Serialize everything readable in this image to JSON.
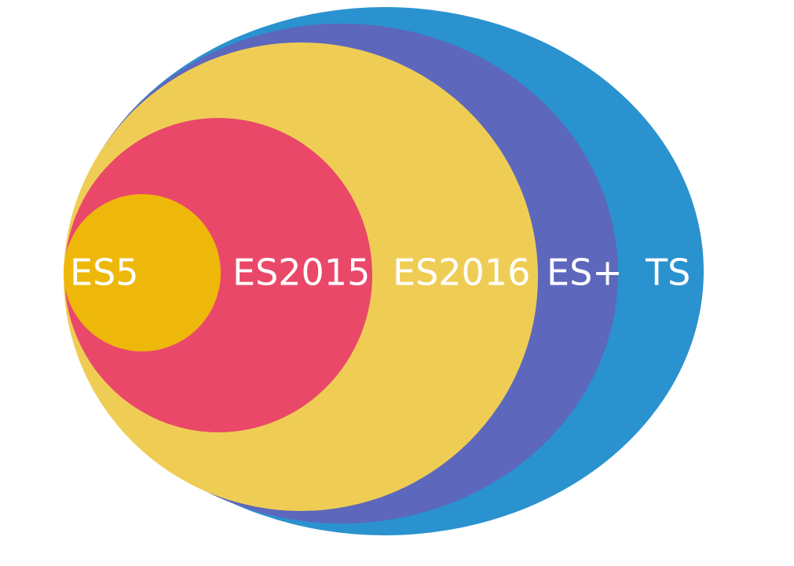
{
  "diagram": {
    "type": "nested-sets",
    "sets": [
      {
        "id": "ts",
        "label": "TS",
        "color": "#2A92CF",
        "contains": "es-plus"
      },
      {
        "id": "es-plus",
        "label": "ES+",
        "color": "#5D67BC",
        "contains": "es2016"
      },
      {
        "id": "es2016",
        "label": "ES2016",
        "color": "#EFCD55",
        "contains": "es2015"
      },
      {
        "id": "es2015",
        "label": "ES2015",
        "color": "#EA4869",
        "contains": "es5"
      },
      {
        "id": "es5",
        "label": "ES5",
        "color": "#EEB80A",
        "contains": null
      }
    ],
    "label_color": "#FFFFFF"
  }
}
